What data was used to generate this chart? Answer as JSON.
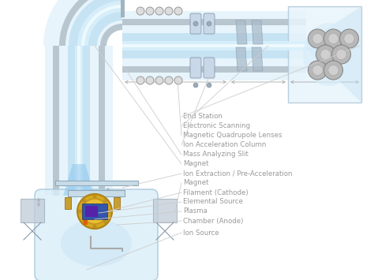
{
  "bg_color": "#ffffff",
  "labels": [
    "End Station",
    "Electronic Scanning",
    "Magnetic Quadrupole Lenses",
    "Ion Acceleration Column",
    "Mass Analyzing Slit",
    "Magnet",
    "Ion Extraction / Pre-Acceleration",
    "Magnet",
    "Filament (Cathode)",
    "Elemental Source",
    "Plasma",
    "Chamber (Anode)",
    "Ion Source"
  ],
  "label_color": "#999999",
  "label_fontsize": 6.2,
  "beam_light": "#c8e8fa",
  "beam_mid": "#7ec8f0",
  "beam_bright": "#e8f6ff",
  "beam_core": "#ffffff",
  "gray_wall": "#b0bec8",
  "tube_fill": "#daeefa"
}
